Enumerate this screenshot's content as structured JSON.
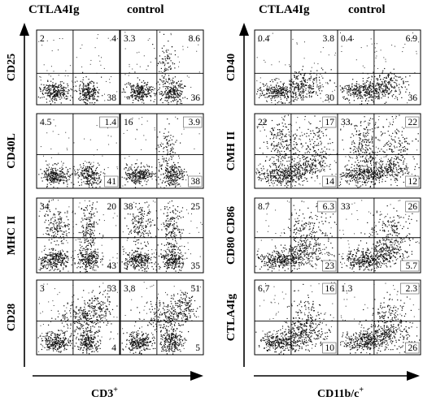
{
  "headers": {
    "left_treatment": "CTLA4Ig",
    "left_control": "control",
    "right_treatment": "CTLA4Ig",
    "right_control": "control"
  },
  "x_axis_labels": {
    "left": "CD3",
    "left_sup": "+",
    "right": "CD11b/c",
    "right_sup": "+"
  },
  "left_rows": [
    {
      "label": "CD25",
      "ctla4ig": {
        "ul": "2",
        "ur": "4",
        "ll": "",
        "lr": "38"
      },
      "control": {
        "ul": "3.3",
        "ur": "8.6",
        "ll": "",
        "lr": "36"
      }
    },
    {
      "label": "CD40L",
      "ctla4ig": {
        "ul": "4.5",
        "ur": "1.4",
        "ll": "",
        "lr": "41"
      },
      "control": {
        "ul": "16",
        "ur": "3.9",
        "ll": "",
        "lr": "38"
      }
    },
    {
      "label": "MHC II",
      "ctla4ig": {
        "ul": "34",
        "ur": "20",
        "ll": "5",
        "lr": "43"
      },
      "control": {
        "ul": "38",
        "ur": "25",
        "ll": "5",
        "lr": "35"
      }
    },
    {
      "label": "CD28",
      "ctla4ig": {
        "ul": "3",
        "ur": "53",
        "ll": "",
        "lr": "4"
      },
      "control": {
        "ul": "3.8",
        "ur": "51",
        "ll": "",
        "lr": "5"
      }
    }
  ],
  "right_rows": [
    {
      "label": "CD40",
      "ctla4ig": {
        "ul": "0.4",
        "ur": "3.8",
        "ll": "",
        "lr": "30"
      },
      "control": {
        "ul": "0.4",
        "ur": "6.9",
        "ll": "",
        "lr": "36"
      }
    },
    {
      "label": "CMH II",
      "ctla4ig": {
        "ul": "22",
        "ur": "17",
        "ll": "",
        "lr": "14"
      },
      "control": {
        "ul": "33",
        "ur": "22",
        "ll": "",
        "lr": "12"
      }
    },
    {
      "label": "CD80 CD86",
      "ctla4ig": {
        "ul": "8.7",
        "ur": "6.3",
        "ll": "",
        "lr": "23"
      },
      "control": {
        "ul": "33",
        "ur": "26",
        "ll": "",
        "lr": "5.7"
      }
    },
    {
      "label": "CTLA4Ig",
      "ctla4ig": {
        "ul": "6.7",
        "ur": "16",
        "ll": "",
        "lr": "10"
      },
      "control": {
        "ul": "1.3",
        "ur": "2.3",
        "ll": "",
        "lr": "26"
      }
    }
  ]
}
